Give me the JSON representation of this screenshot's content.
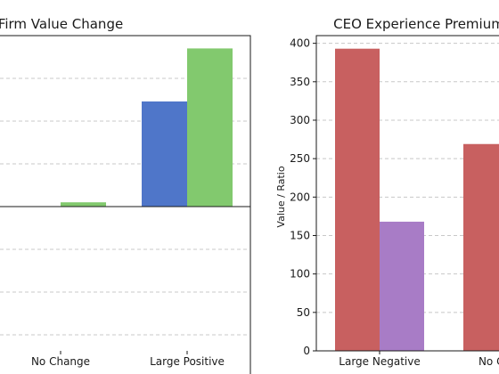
{
  "chart_data": [
    {
      "type": "bar",
      "title": "Firm Value Change",
      "categories": [
        "No Change",
        "Large Positive"
      ],
      "ylim": [
        -2.0,
        2.0
      ],
      "grid": "y",
      "series": [
        {
          "color": "#4f76c9",
          "values": [
            0.0,
            1.23
          ]
        },
        {
          "color": "#82c96e",
          "values": [
            0.05,
            1.85
          ]
        }
      ]
    },
    {
      "type": "bar",
      "title": "CEO Experience Premium",
      "ylabel": "Value / Ratio",
      "categories": [
        "Large Negative",
        "No Change"
      ],
      "ylim": [
        0,
        410
      ],
      "yticks": [
        0,
        50,
        100,
        150,
        200,
        250,
        300,
        350,
        400
      ],
      "grid": "y",
      "series": [
        {
          "color": "#c86060",
          "values": [
            393,
            269
          ]
        },
        {
          "color": "#a87cc6",
          "values": [
            168,
            null
          ]
        }
      ]
    }
  ]
}
